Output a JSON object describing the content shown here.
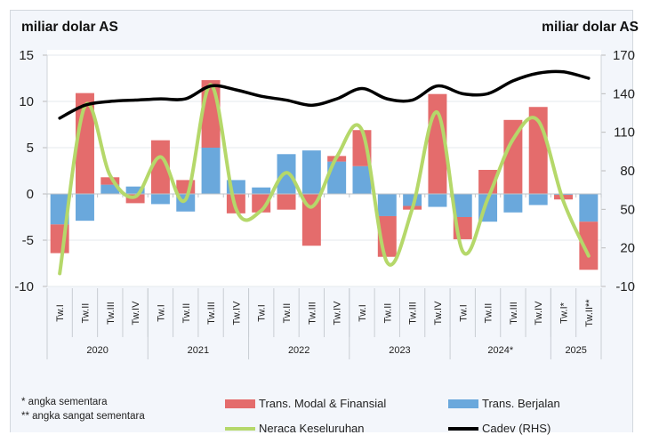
{
  "chart_data": {
    "type": "bar",
    "stacked": true,
    "title": "",
    "ylabel_left": "miliar dolar AS",
    "ylabel_right": "miliar dolar AS",
    "ylim_left": [
      -10,
      15
    ],
    "yticks_left": [
      15,
      10,
      5,
      0,
      -5,
      -10
    ],
    "ylim_right": [
      -10,
      170
    ],
    "yticks_right": [
      170,
      140,
      110,
      80,
      50,
      20,
      -10
    ],
    "grid": true,
    "legend_position": "bottom",
    "categories": [
      "Tw.I",
      "Tw.II",
      "Tw.III",
      "Tw.IV",
      "Tw.I",
      "Tw.II",
      "Tw.III",
      "Tw.IV",
      "Tw.I",
      "Tw.II",
      "Tw.III",
      "Tw.IV",
      "Tw.I",
      "Tw.II",
      "Tw.III",
      "Tw.IV",
      "Tw.I",
      "Tw.II",
      "Tw.III",
      "Tw.IV",
      "Tw.I*",
      "Tw.II**"
    ],
    "year_groups": [
      {
        "label": "2020",
        "count": 4
      },
      {
        "label": "2021",
        "count": 4
      },
      {
        "label": "2022",
        "count": 4
      },
      {
        "label": "2023",
        "count": 4
      },
      {
        "label": "2024*",
        "count": 4
      },
      {
        "label": "2025",
        "count": 2
      }
    ],
    "series": [
      {
        "name": "Trans. Berjalan",
        "kind": "bar",
        "axis": "left",
        "color": "#6aa8dc",
        "values": [
          -3.3,
          -2.9,
          1.0,
          0.8,
          -1.1,
          -1.9,
          5.0,
          1.5,
          0.7,
          4.3,
          4.7,
          3.5,
          3.0,
          -2.4,
          -1.3,
          -1.4,
          -2.5,
          -3.0,
          -2.0,
          -1.2,
          -0.1,
          -3.0
        ]
      },
      {
        "name": "Trans. Modal & Finansial",
        "kind": "bar",
        "axis": "left",
        "color": "#e46c6c",
        "values": [
          -3.1,
          10.9,
          0.8,
          -1.0,
          5.8,
          1.5,
          7.3,
          -2.1,
          -2.0,
          -1.7,
          -5.6,
          0.6,
          3.9,
          -4.4,
          -0.4,
          10.8,
          -2.4,
          2.6,
          8.0,
          9.4,
          -0.5,
          -5.2
        ]
      },
      {
        "name": "Neraca Keseluruhan",
        "kind": "line",
        "axis": "left",
        "color": "#b5d86a",
        "values": [
          -8.6,
          9.5,
          2.0,
          -0.3,
          4.0,
          -0.6,
          11.8,
          -1.6,
          -1.8,
          2.3,
          -1.4,
          4.0,
          6.9,
          -7.4,
          -1.6,
          8.8,
          -6.2,
          -0.5,
          5.9,
          7.9,
          -0.8,
          -6.7
        ]
      },
      {
        "name": "Cadev (RHS)",
        "kind": "line",
        "axis": "right",
        "color": "#000000",
        "values": [
          121,
          131,
          134,
          135,
          136,
          136,
          146,
          143,
          138,
          135,
          131,
          136,
          144,
          136,
          135,
          146,
          140,
          140,
          150,
          156,
          157,
          152
        ]
      }
    ]
  },
  "notes": [
    "* angka sementara",
    "** angka sangat sementara"
  ],
  "legend": {
    "modal": "Trans. Modal & Finansial",
    "berjalan": "Trans. Berjalan",
    "neraca": "Neraca Keseluruhan",
    "cadev": "Cadev (RHS)"
  }
}
